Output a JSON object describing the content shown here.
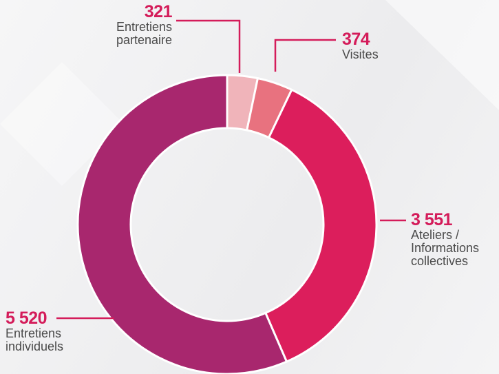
{
  "chart_data": {
    "type": "pie",
    "categories": [
      "Entretiens partenaire",
      "Visites",
      "Ateliers / Informations collectives",
      "Entretiens individuels"
    ],
    "values": [
      321,
      374,
      3551,
      5520
    ],
    "value_labels": [
      "321",
      "374",
      "3 551",
      "5 520"
    ],
    "colors": [
      "#f0b4ba",
      "#e8727f",
      "#dc1e5c",
      "#a8276e"
    ]
  }
}
